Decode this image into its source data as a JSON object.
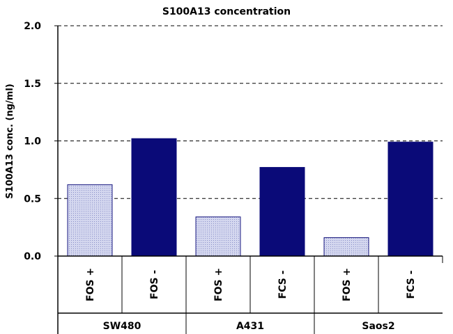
{
  "chart_data": {
    "type": "bar",
    "title": "S100A13 concentration",
    "xlabel": "",
    "ylabel": "S100A13 conc. (ng/ml)",
    "ylim": [
      0,
      2.0
    ],
    "yticks": [
      "0.0",
      "0.5",
      "1.0",
      "1.5",
      "2.0"
    ],
    "ytick_values": [
      0,
      0.5,
      1.0,
      1.5,
      2.0
    ],
    "grid": true,
    "categories": [
      "FOS +",
      "FOS -",
      "FOS +",
      "FCS -",
      "FOS +",
      "FCS -"
    ],
    "groups": [
      "SW480",
      "A431",
      "Saos2"
    ],
    "values": [
      0.62,
      1.02,
      0.34,
      0.77,
      0.16,
      0.99
    ],
    "bar_styles": [
      "light",
      "dark",
      "light",
      "dark",
      "light",
      "dark"
    ],
    "colors": {
      "light": "#c8cce8",
      "light_border": "#1a1a80",
      "dark": "#0a0a78"
    }
  }
}
